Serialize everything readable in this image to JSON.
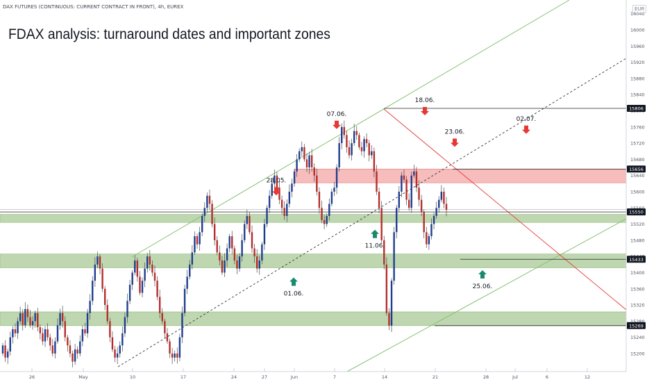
{
  "header": {
    "symbol_line": "DAX FUTURES (CONTINUOUS: CURRENT CONTRACT IN FRONT), 4h, EUREX",
    "currency": "EUR",
    "title": "FDAX analysis: turnaround dates and important zones"
  },
  "colors": {
    "bull": "#1e3d8f",
    "bear": "#b52d2a",
    "channel": "#86c272",
    "zone_green": "#a9c996",
    "zone_red": "#f4a6a6",
    "arrow_down": "#e53935",
    "arrow_up": "#1a8a6e"
  },
  "chart_data": {
    "type": "candlestick",
    "timeframe": "4h",
    "y_axis": {
      "ticks": [
        15200,
        15240,
        15280,
        15320,
        15360,
        15400,
        15440,
        15480,
        15520,
        15560,
        15600,
        15640,
        15680,
        15720,
        15760,
        15800,
        15840,
        15880,
        15920,
        15960,
        16000,
        16040
      ],
      "range": [
        15170,
        16050
      ]
    },
    "x_axis": {
      "ticks": [
        "26",
        "May",
        "10",
        "17",
        "24",
        "27",
        "Jun",
        "7",
        "14",
        "21",
        "28",
        "Jul",
        "6",
        "12"
      ]
    },
    "price_labels": [
      "15806",
      "15656",
      "15550",
      "15433",
      "15269"
    ],
    "candles_close": [
      15220,
      15190,
      15205,
      15240,
      15260,
      15250,
      15280,
      15300,
      15270,
      15310,
      15290,
      15270,
      15280,
      15300,
      15265,
      15250,
      15230,
      15260,
      15240,
      15220,
      15200,
      15230,
      15270,
      15300,
      15280,
      15240,
      15220,
      15200,
      15180,
      15210,
      15200,
      15230,
      15260,
      15250,
      15300,
      15330,
      15380,
      15420,
      15440,
      15410,
      15360,
      15320,
      15280,
      15240,
      15210,
      15190,
      15200,
      15220,
      15250,
      15290,
      15330,
      15370,
      15400,
      15430,
      15390,
      15350,
      15380,
      15410,
      15440,
      15420,
      15400,
      15380,
      15340,
      15300,
      15280,
      15250,
      15230,
      15200,
      15190,
      15200,
      15190,
      15240,
      15300,
      15360,
      15390,
      15420,
      15450,
      15490,
      15470,
      15500,
      15540,
      15560,
      15590,
      15570,
      15520,
      15480,
      15450,
      15430,
      15400,
      15430,
      15460,
      15490,
      15460,
      15430,
      15410,
      15440,
      15480,
      15520,
      15540,
      15500,
      15460,
      15440,
      15410,
      15430,
      15470,
      15520,
      15560,
      15590,
      15620,
      15640,
      15610,
      15580,
      15560,
      15540,
      15570,
      15600,
      15620,
      15650,
      15680,
      15700,
      15710,
      15680,
      15660,
      15690,
      15660,
      15640,
      15600,
      15560,
      15530,
      15520,
      15540,
      15570,
      15600,
      15610,
      15660,
      15720,
      15760,
      15740,
      15710,
      15690,
      15720,
      15750,
      15740,
      15710,
      15700,
      15730,
      15720,
      15690,
      15700,
      15650,
      15600,
      15560,
      15480,
      15420,
      15300,
      15269,
      15380,
      15500,
      15560,
      15600,
      15640,
      15630,
      15580,
      15560,
      15640,
      15650,
      15610,
      15580,
      15550,
      15500,
      15470,
      15490,
      15520,
      15540,
      15560,
      15580,
      15600,
      15570,
      15555
    ]
  },
  "annotations": {
    "down_arrows": [
      {
        "label": "28.05.",
        "price": 15608
      },
      {
        "label": "07.06.",
        "price": 15772
      },
      {
        "label": "18.06.",
        "price": 15806
      },
      {
        "label": "23.06.",
        "price": 15728
      },
      {
        "label": "02.07.",
        "price": 15760
      }
    ],
    "up_arrows": [
      {
        "label": "01.06.",
        "price": 15364
      },
      {
        "label": "11.06.",
        "price": 15482
      },
      {
        "label": "25.06.",
        "price": 15382
      }
    ]
  },
  "zones": [
    {
      "color": "red",
      "from": 15622,
      "to": 15656
    },
    {
      "color": "green",
      "from": 15524,
      "to": 15544
    },
    {
      "color": "green",
      "from": 15412,
      "to": 15446
    },
    {
      "color": "green",
      "from": 15269,
      "to": 15303
    }
  ]
}
